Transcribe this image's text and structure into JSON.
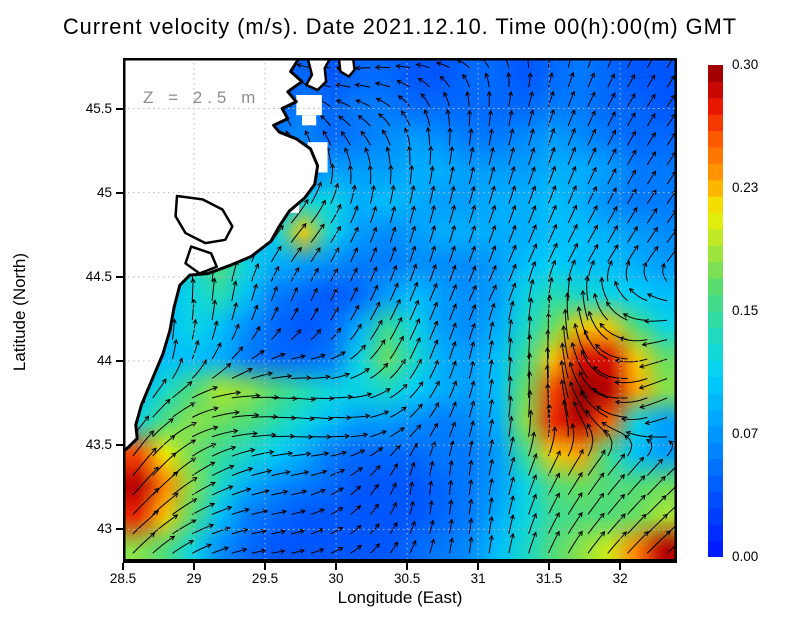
{
  "title": "Current velocity (m/s). Date 2021.12.10. Time 00(h):00(m) GMT",
  "z_label": "Z = 2.5 m",
  "axes": {
    "x": {
      "label": "Longitude (East)",
      "min": 28.5,
      "max": 32.4,
      "tick_labels": [
        "28.5",
        "29",
        "29.5",
        "30",
        "30.5",
        "31",
        "31.5",
        "32"
      ],
      "tick_values": [
        28.5,
        29,
        29.5,
        30,
        30.5,
        31,
        31.5,
        32
      ]
    },
    "y": {
      "label": "Latitude (North)",
      "min": 42.8,
      "max": 45.8,
      "tick_labels": [
        "45.5",
        "45",
        "44.5",
        "44",
        "43.5",
        "43"
      ],
      "tick_values": [
        45.5,
        45,
        44.5,
        44,
        43.5,
        43
      ]
    }
  },
  "colorbar": {
    "min": 0.0,
    "max": 0.3,
    "labels": [
      "0.30",
      "0.23",
      "0.15",
      "0.07",
      "0.00"
    ],
    "fractions": [
      1,
      0.75,
      0.5,
      0.25,
      0
    ]
  },
  "colors": {
    "grid_line": "#b9b9b9",
    "coast_stroke": "#000000",
    "land_fill": "#ffffff",
    "arrow": "#000000",
    "z_label_color": "#8c8c8c",
    "colormap_stops": [
      [
        0.0,
        [
          0,
          20,
          255
        ]
      ],
      [
        0.12,
        [
          0,
          80,
          255
        ]
      ],
      [
        0.25,
        [
          0,
          150,
          255
        ]
      ],
      [
        0.37,
        [
          0,
          210,
          250
        ]
      ],
      [
        0.47,
        [
          40,
          220,
          175
        ]
      ],
      [
        0.55,
        [
          90,
          220,
          110
        ]
      ],
      [
        0.63,
        [
          170,
          230,
          50
        ]
      ],
      [
        0.7,
        [
          240,
          240,
          0
        ]
      ],
      [
        0.77,
        [
          255,
          160,
          0
        ]
      ],
      [
        0.85,
        [
          255,
          90,
          0
        ]
      ],
      [
        0.92,
        [
          230,
          20,
          0
        ]
      ],
      [
        0.97,
        [
          180,
          0,
          0
        ]
      ],
      [
        1.0,
        [
          140,
          0,
          0
        ]
      ]
    ]
  },
  "chart_data": {
    "type": "heatmap",
    "subtype": "velocity-magnitude-field-with-quiver",
    "units": "m/s",
    "lon_range": [
      28.5,
      32.4
    ],
    "lat_range": [
      42.8,
      45.8
    ],
    "grid_lons": [
      28.5,
      28.71,
      28.91,
      29.12,
      29.32,
      29.53,
      29.73,
      29.94,
      30.14,
      30.35,
      30.55,
      30.76,
      30.96,
      31.17,
      31.37,
      31.58,
      31.78,
      31.99,
      32.19,
      32.4
    ],
    "grid_lats": [
      45.8,
      45.6,
      45.4,
      45.2,
      45.0,
      44.8,
      44.6,
      44.4,
      44.2,
      44.0,
      43.8,
      43.6,
      43.4,
      43.2,
      43.0,
      42.8
    ],
    "speed": [
      [
        0.03,
        0.03,
        0.03,
        0.03,
        0.04,
        0.04,
        0.05,
        0.04,
        0.05,
        0.05,
        0.04,
        0.04,
        0.05,
        0.05,
        0.04,
        0.05,
        0.06,
        0.05,
        0.04,
        0.04
      ],
      [
        0.03,
        0.03,
        0.03,
        0.03,
        0.04,
        0.05,
        0.06,
        0.05,
        0.06,
        0.06,
        0.05,
        0.05,
        0.05,
        0.05,
        0.05,
        0.06,
        0.06,
        0.05,
        0.05,
        0.04
      ],
      [
        0.03,
        0.03,
        0.03,
        0.04,
        0.05,
        0.06,
        0.07,
        0.05,
        0.06,
        0.07,
        0.08,
        0.07,
        0.06,
        0.06,
        0.07,
        0.08,
        0.07,
        0.06,
        0.05,
        0.05
      ],
      [
        0.03,
        0.03,
        0.03,
        0.04,
        0.05,
        0.05,
        0.05,
        0.08,
        0.08,
        0.08,
        0.09,
        0.09,
        0.08,
        0.08,
        0.08,
        0.09,
        0.09,
        0.08,
        0.06,
        0.06
      ],
      [
        0.03,
        0.03,
        0.03,
        0.04,
        0.05,
        0.08,
        0.12,
        0.12,
        0.09,
        0.1,
        0.09,
        0.08,
        0.08,
        0.09,
        0.09,
        0.1,
        0.09,
        0.07,
        0.06,
        0.06
      ],
      [
        0.03,
        0.03,
        0.03,
        0.04,
        0.08,
        0.12,
        0.22,
        0.12,
        0.08,
        0.07,
        0.08,
        0.09,
        0.09,
        0.09,
        0.09,
        0.1,
        0.1,
        0.09,
        0.08,
        0.07
      ],
      [
        0.06,
        0.08,
        0.13,
        0.16,
        0.12,
        0.09,
        0.08,
        0.07,
        0.06,
        0.06,
        0.07,
        0.07,
        0.07,
        0.08,
        0.1,
        0.11,
        0.1,
        0.1,
        0.09,
        0.08
      ],
      [
        0.08,
        0.1,
        0.12,
        0.14,
        0.1,
        0.06,
        0.05,
        0.04,
        0.05,
        0.08,
        0.1,
        0.08,
        0.07,
        0.08,
        0.12,
        0.14,
        0.13,
        0.12,
        0.11,
        0.1
      ],
      [
        0.08,
        0.1,
        0.12,
        0.1,
        0.07,
        0.05,
        0.04,
        0.05,
        0.09,
        0.15,
        0.12,
        0.08,
        0.07,
        0.09,
        0.13,
        0.17,
        0.22,
        0.22,
        0.16,
        0.12
      ],
      [
        0.08,
        0.1,
        0.1,
        0.09,
        0.06,
        0.05,
        0.05,
        0.06,
        0.12,
        0.17,
        0.13,
        0.09,
        0.08,
        0.1,
        0.15,
        0.22,
        0.28,
        0.28,
        0.22,
        0.17
      ],
      [
        0.1,
        0.13,
        0.16,
        0.19,
        0.18,
        0.16,
        0.14,
        0.12,
        0.12,
        0.13,
        0.11,
        0.09,
        0.08,
        0.1,
        0.17,
        0.26,
        0.3,
        0.29,
        0.23,
        0.18
      ],
      [
        0.12,
        0.16,
        0.18,
        0.17,
        0.16,
        0.14,
        0.12,
        0.1,
        0.08,
        0.08,
        0.07,
        0.06,
        0.07,
        0.09,
        0.18,
        0.27,
        0.29,
        0.25,
        0.12,
        0.08
      ],
      [
        0.26,
        0.21,
        0.17,
        0.15,
        0.13,
        0.11,
        0.09,
        0.06,
        0.05,
        0.05,
        0.05,
        0.06,
        0.06,
        0.08,
        0.15,
        0.22,
        0.23,
        0.15,
        0.1,
        0.08
      ],
      [
        0.29,
        0.24,
        0.18,
        0.13,
        0.09,
        0.07,
        0.06,
        0.05,
        0.04,
        0.04,
        0.04,
        0.05,
        0.06,
        0.08,
        0.12,
        0.16,
        0.17,
        0.16,
        0.16,
        0.17
      ],
      [
        0.27,
        0.22,
        0.16,
        0.1,
        0.06,
        0.05,
        0.04,
        0.04,
        0.04,
        0.04,
        0.04,
        0.05,
        0.06,
        0.09,
        0.12,
        0.15,
        0.16,
        0.16,
        0.17,
        0.19
      ],
      [
        0.18,
        0.16,
        0.12,
        0.07,
        0.05,
        0.04,
        0.04,
        0.04,
        0.04,
        0.04,
        0.05,
        0.06,
        0.07,
        0.1,
        0.13,
        0.16,
        0.18,
        0.2,
        0.24,
        0.29
      ]
    ],
    "direction_deg_ccw_from_east": [
      [
        180,
        180,
        180,
        175,
        172,
        170,
        170,
        185,
        190,
        185,
        180,
        170,
        150,
        120,
        100,
        80,
        70,
        65,
        60,
        60
      ],
      [
        170,
        170,
        165,
        160,
        155,
        150,
        140,
        160,
        170,
        160,
        140,
        120,
        100,
        85,
        75,
        70,
        65,
        60,
        58,
        55
      ],
      [
        150,
        150,
        145,
        140,
        130,
        125,
        120,
        130,
        140,
        130,
        110,
        95,
        85,
        80,
        75,
        70,
        65,
        62,
        58,
        55
      ],
      [
        120,
        115,
        110,
        105,
        100,
        95,
        90,
        100,
        110,
        100,
        90,
        82,
        78,
        75,
        72,
        70,
        66,
        62,
        58,
        56
      ],
      [
        100,
        95,
        90,
        85,
        75,
        65,
        60,
        70,
        80,
        80,
        78,
        76,
        74,
        72,
        70,
        68,
        64,
        62,
        58,
        55
      ],
      [
        95,
        92,
        90,
        80,
        65,
        55,
        50,
        55,
        65,
        72,
        74,
        74,
        72,
        70,
        68,
        66,
        62,
        60,
        57,
        54
      ],
      [
        90,
        88,
        85,
        80,
        70,
        60,
        55,
        60,
        65,
        70,
        72,
        72,
        70,
        68,
        66,
        64,
        60,
        58,
        55,
        52
      ],
      [
        92,
        91,
        90,
        85,
        78,
        70,
        66,
        64,
        64,
        66,
        68,
        68,
        66,
        64,
        80,
        85,
        95,
        120,
        150,
        165
      ],
      [
        90,
        88,
        85,
        80,
        70,
        62,
        58,
        58,
        60,
        62,
        66,
        68,
        70,
        82,
        86,
        92,
        110,
        150,
        185,
        195
      ],
      [
        85,
        80,
        75,
        60,
        40,
        20,
        8,
        15,
        40,
        55,
        65,
        70,
        78,
        84,
        88,
        95,
        120,
        165,
        195,
        200
      ],
      [
        70,
        55,
        35,
        15,
        5,
        0,
        -5,
        0,
        10,
        30,
        50,
        65,
        75,
        85,
        88,
        95,
        130,
        175,
        200,
        205
      ],
      [
        60,
        45,
        30,
        15,
        5,
        0,
        -5,
        -5,
        0,
        20,
        45,
        65,
        75,
        82,
        86,
        92,
        120,
        160,
        190,
        200
      ],
      [
        55,
        48,
        38,
        28,
        20,
        12,
        10,
        15,
        30,
        50,
        70,
        80,
        82,
        75,
        70,
        62,
        55,
        50,
        48,
        45
      ],
      [
        50,
        45,
        35,
        25,
        18,
        12,
        15,
        25,
        45,
        60,
        85,
        85,
        82,
        78,
        70,
        60,
        55,
        50,
        46,
        44
      ],
      [
        45,
        40,
        30,
        20,
        15,
        10,
        15,
        25,
        40,
        55,
        70,
        80,
        82,
        80,
        70,
        60,
        52,
        48,
        45,
        42
      ],
      [
        48,
        42,
        32,
        22,
        15,
        10,
        12,
        20,
        35,
        50,
        65,
        78,
        82,
        80,
        72,
        62,
        54,
        48,
        45,
        42
      ]
    ],
    "land": {
      "coast_polygon": [
        [
          29.74,
          45.8
        ],
        [
          29.68,
          45.72
        ],
        [
          29.76,
          45.66
        ],
        [
          29.66,
          45.6
        ],
        [
          29.72,
          45.54
        ],
        [
          29.62,
          45.5
        ],
        [
          29.66,
          45.44
        ],
        [
          29.56,
          45.4
        ],
        [
          29.6,
          45.36
        ],
        [
          29.72,
          45.32
        ],
        [
          29.82,
          45.26
        ],
        [
          29.87,
          45.16
        ],
        [
          29.85,
          45.05
        ],
        [
          29.78,
          44.97
        ],
        [
          29.67,
          44.89
        ],
        [
          29.6,
          44.8
        ],
        [
          29.54,
          44.71
        ],
        [
          29.4,
          44.62
        ],
        [
          29.26,
          44.57
        ],
        [
          29.1,
          44.52
        ],
        [
          28.97,
          44.51
        ],
        [
          28.9,
          44.45
        ],
        [
          28.86,
          44.32
        ],
        [
          28.83,
          44.18
        ],
        [
          28.78,
          44.04
        ],
        [
          28.7,
          43.88
        ],
        [
          28.63,
          43.74
        ],
        [
          28.59,
          43.62
        ],
        [
          28.6,
          43.54
        ],
        [
          28.54,
          43.49
        ],
        [
          28.5,
          43.46
        ],
        [
          28.5,
          45.8
        ]
      ],
      "lagoons": [
        [
          [
            28.88,
            44.98
          ],
          [
            29.06,
            44.96
          ],
          [
            29.2,
            44.9
          ],
          [
            29.27,
            44.8
          ],
          [
            29.22,
            44.72
          ],
          [
            29.08,
            44.7
          ],
          [
            28.94,
            44.76
          ],
          [
            28.87,
            44.86
          ]
        ],
        [
          [
            28.98,
            44.68
          ],
          [
            29.12,
            44.64
          ],
          [
            29.16,
            44.56
          ],
          [
            29.04,
            44.52
          ],
          [
            28.94,
            44.58
          ]
        ]
      ],
      "islands": [
        [
          [
            29.8,
            45.8
          ],
          [
            29.83,
            45.7
          ],
          [
            29.79,
            45.64
          ],
          [
            29.87,
            45.61
          ],
          [
            29.93,
            45.66
          ],
          [
            29.92,
            45.74
          ],
          [
            29.96,
            45.8
          ]
        ],
        [
          [
            30.02,
            45.8
          ],
          [
            30.03,
            45.72
          ],
          [
            30.09,
            45.69
          ],
          [
            30.13,
            45.73
          ],
          [
            30.12,
            45.8
          ]
        ]
      ],
      "mask_rects": [
        [
          29.72,
          45.58,
          29.9,
          45.46
        ],
        [
          29.76,
          45.46,
          29.86,
          45.4
        ],
        [
          29.8,
          45.3,
          29.94,
          45.12
        ],
        [
          29.7,
          45.12,
          29.8,
          45.04
        ],
        [
          29.64,
          45.02,
          29.74,
          44.88
        ]
      ]
    },
    "gridline_step_deg": 0.5,
    "legend_position": "right-colorbar"
  }
}
